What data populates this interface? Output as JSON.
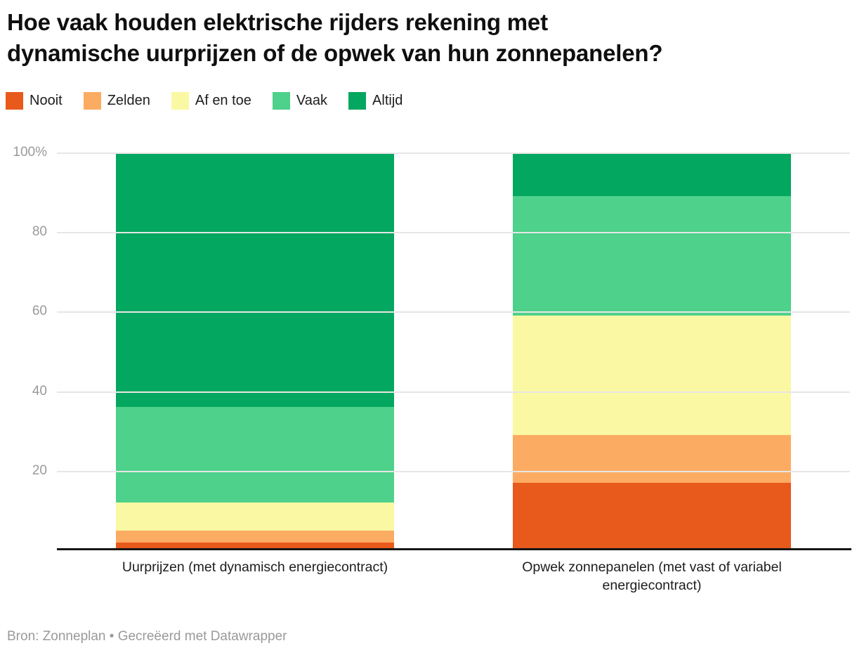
{
  "title": {
    "line1": "Hoe vaak houden elektrische rijders rekening met",
    "line2": "dynamische uurprijzen of de opwek van hun zonnepanelen?"
  },
  "footer": {
    "source_text": "Bron: Zonneplan • Gecreëerd met Datawrapper"
  },
  "chart_data": {
    "type": "bar",
    "stacked": true,
    "unit": "%",
    "title": "Hoe vaak houden elektrische rijders rekening met dynamische uurprijzen of de opwek van hun zonnepanelen?",
    "categories": [
      "Uurprijzen (met dynamisch energiecontract)",
      "Opwek zonnepanelen (met vast of variabel energiecontract)"
    ],
    "series": [
      {
        "name": "Nooit",
        "color": "#e8591c",
        "values": [
          2,
          17
        ]
      },
      {
        "name": "Zelden",
        "color": "#fcac62",
        "values": [
          3,
          12
        ]
      },
      {
        "name": "Af en toe",
        "color": "#fbf8a3",
        "values": [
          7,
          30
        ]
      },
      {
        "name": "Vaak",
        "color": "#4dd18b",
        "values": [
          24,
          30
        ]
      },
      {
        "name": "Altijd",
        "color": "#04a75f",
        "values": [
          64,
          11
        ]
      }
    ],
    "ylim": [
      0,
      100
    ],
    "yticks": [
      {
        "value": 100,
        "label": "100%"
      },
      {
        "value": 80,
        "label": "80"
      },
      {
        "value": 60,
        "label": "60"
      },
      {
        "value": 40,
        "label": "40"
      },
      {
        "value": 20,
        "label": "20"
      }
    ],
    "grid": true,
    "legend_position": "top",
    "xlabel": "",
    "ylabel": ""
  },
  "colors": {
    "gridline": "#e6e6e6",
    "axis_line": "#161616",
    "tick_label": "#9a9a9a",
    "category_label": "#1d1d1d",
    "title_text": "#0f0f0f"
  }
}
